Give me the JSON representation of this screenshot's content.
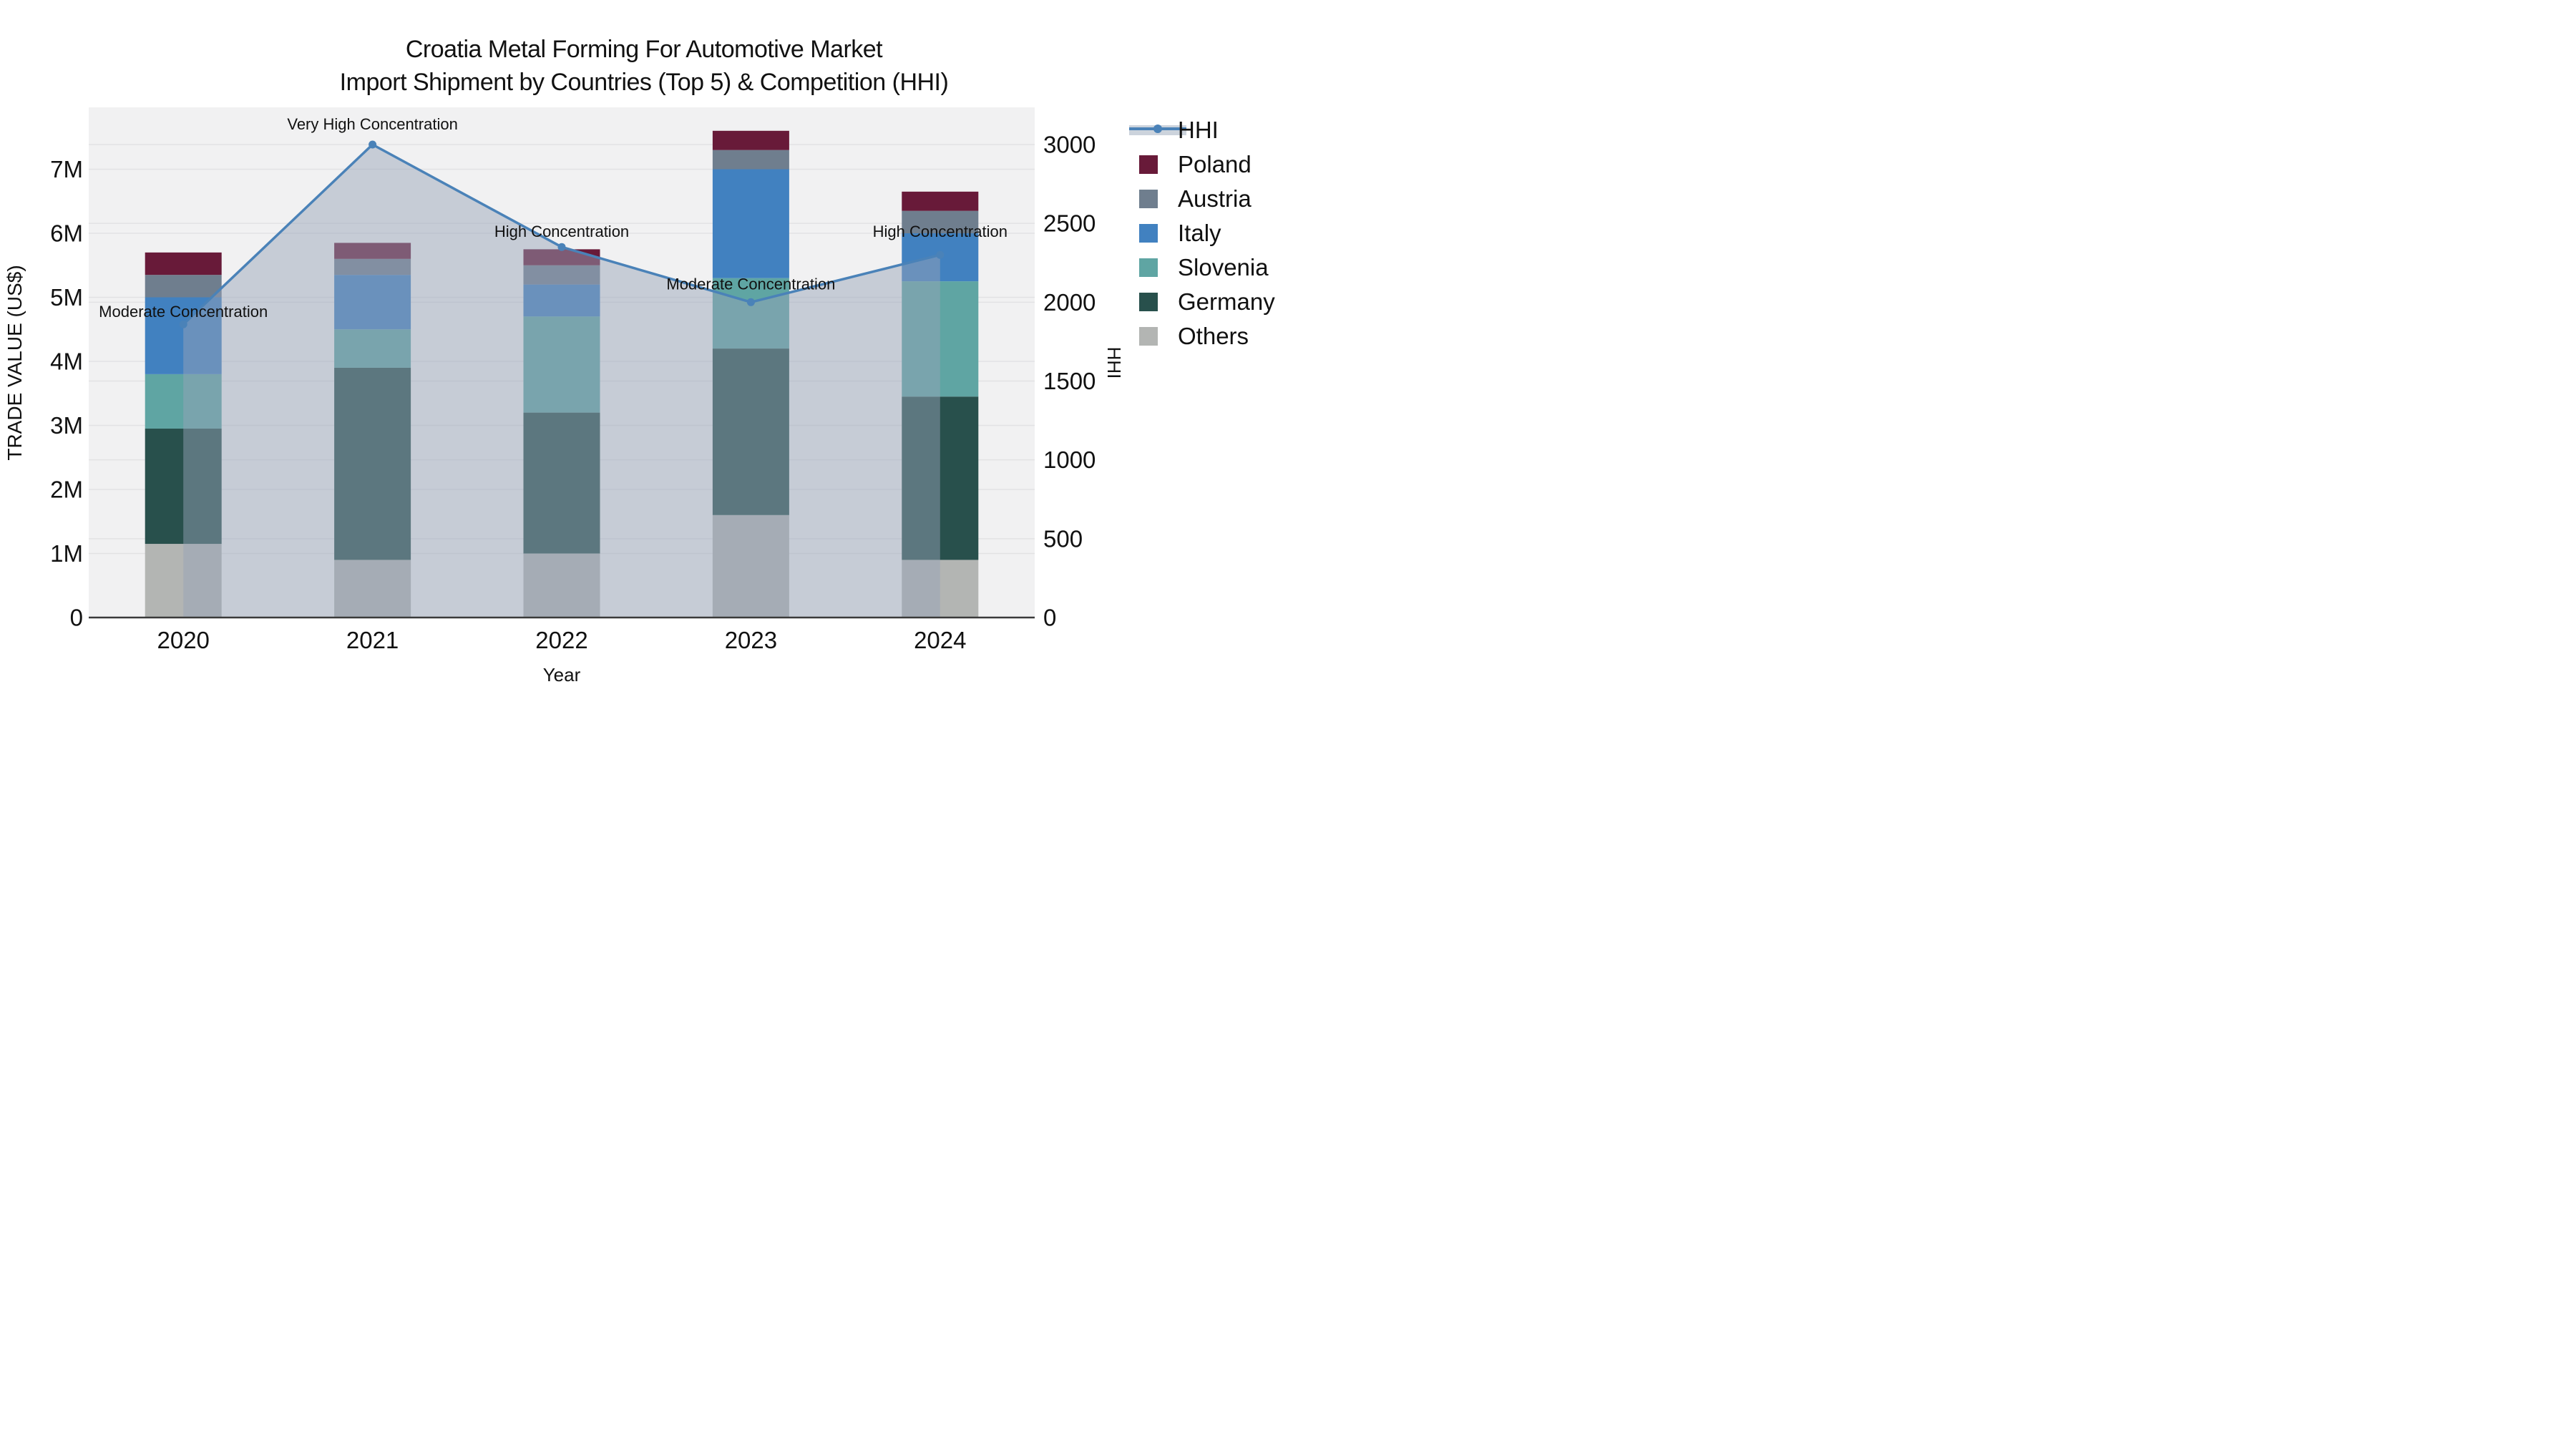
{
  "title": {
    "line1": "Croatia Metal Forming For Automotive Market",
    "line2": "Import Shipment by Countries (Top 5) & Competition (HHI)"
  },
  "axes": {
    "left": {
      "label": "TRADE VALUE (US$)",
      "ticks": [
        "0",
        "1M",
        "2M",
        "3M",
        "4M",
        "5M",
        "6M",
        "7M"
      ]
    },
    "right": {
      "label": "HHI",
      "ticks": [
        "0",
        "500",
        "1000",
        "1500",
        "2000",
        "2500",
        "3000"
      ]
    },
    "x": {
      "label": "Year",
      "ticks": [
        "2020",
        "2021",
        "2022",
        "2023",
        "2024"
      ]
    }
  },
  "legend": {
    "items": [
      {
        "label": "HHI",
        "type": "line",
        "color": "#4a82b8"
      },
      {
        "label": "Poland",
        "type": "patch",
        "color": "#681a39"
      },
      {
        "label": "Austria",
        "type": "patch",
        "color": "#6f7e8e"
      },
      {
        "label": "Italy",
        "type": "patch",
        "color": "#4181c0"
      },
      {
        "label": "Slovenia",
        "type": "patch",
        "color": "#5fa5a3"
      },
      {
        "label": "Germany",
        "type": "patch",
        "color": "#28504c"
      },
      {
        "label": "Others",
        "type": "patch",
        "color": "#b3b5b3"
      }
    ]
  },
  "colors": {
    "line": "#4a82b8",
    "area_fill": "rgba(150,164,184,0.48)",
    "legend_band": "#ccd3dc",
    "plot_bg": "#f1f1f2",
    "grid": "#e2e2e4",
    "axis_line": "#3a3a3a",
    "text": "#111111"
  },
  "chart_data": {
    "type": "bar",
    "subtype": "stacked-bars-with-hhi-line-and-area",
    "title": "Croatia Metal Forming For Automotive Market — Import Shipment by Countries (Top 5) & Competition (HHI)",
    "xlabel": "Year",
    "ylabel": "TRADE VALUE (US$)",
    "ylabel_right": "HHI",
    "categories": [
      "2020",
      "2021",
      "2022",
      "2023",
      "2024"
    ],
    "unit": "millions US$",
    "ylim": [
      0,
      7.95
    ],
    "ylim_right": [
      0,
      3200
    ],
    "grid": "horizontal-both-axes",
    "legend_position": "upper-right-outside",
    "series": [
      {
        "name": "Others",
        "values": [
          1.15,
          0.9,
          1.0,
          1.6,
          0.9
        ]
      },
      {
        "name": "Germany",
        "values": [
          1.8,
          3.0,
          2.2,
          2.6,
          2.55
        ]
      },
      {
        "name": "Slovenia",
        "values": [
          0.85,
          0.6,
          1.5,
          1.1,
          1.8
        ]
      },
      {
        "name": "Italy",
        "values": [
          1.2,
          0.85,
          0.5,
          1.7,
          0.75
        ]
      },
      {
        "name": "Austria",
        "values": [
          0.35,
          0.25,
          0.3,
          0.3,
          0.35
        ]
      },
      {
        "name": "Poland",
        "values": [
          0.35,
          0.25,
          0.25,
          0.3,
          0.3
        ]
      }
    ],
    "bar_totals": [
      5.7,
      5.85,
      5.75,
      7.6,
      6.65
    ],
    "line_series": {
      "name": "HHI",
      "values": [
        1860,
        3000,
        2350,
        2000,
        2300
      ]
    },
    "annotations": [
      {
        "category": "2020",
        "text": "Moderate Concentration",
        "dy": -10
      },
      {
        "category": "2021",
        "text": "Very High Concentration",
        "dy": -21
      },
      {
        "category": "2022",
        "text": "High Concentration",
        "dy": -14
      },
      {
        "category": "2023",
        "text": "Moderate Concentration",
        "dy": -18
      },
      {
        "category": "2024",
        "text": "High Concentration",
        "dy": -25
      }
    ]
  }
}
